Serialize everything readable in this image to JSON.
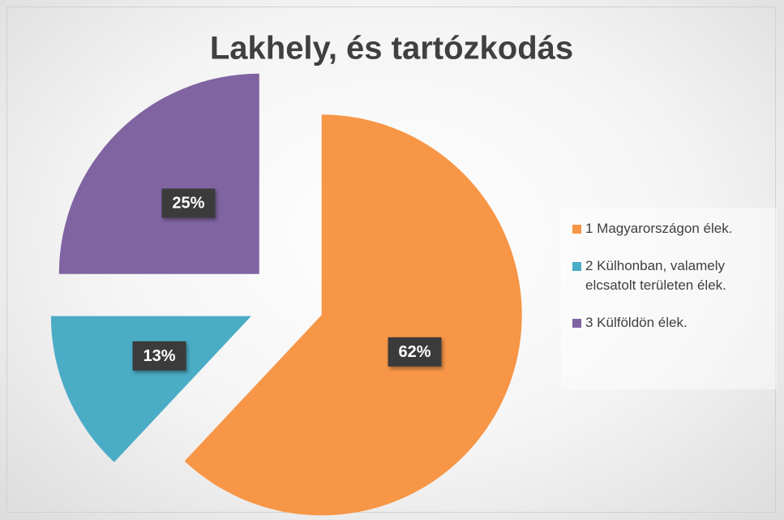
{
  "chart_data": {
    "type": "pie",
    "title": "Lakhely, és tartózkodás",
    "categories": [
      "1 Magyarországon élek.",
      "2 Külhonban, valamely elcsatolt területen élek.",
      "3 Külföldön élek."
    ],
    "values": [
      62,
      13,
      25
    ],
    "value_labels": [
      "62%",
      "13%",
      "25%"
    ],
    "colors": [
      "#f79646",
      "#4bacc6",
      "#8064a2"
    ],
    "legend": "right"
  }
}
